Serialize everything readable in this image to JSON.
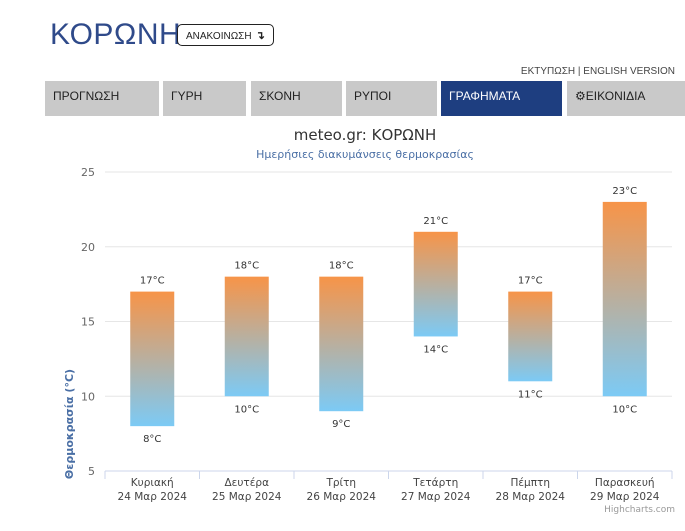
{
  "header": {
    "title": "ΚΟΡΩΝΗ",
    "announce_label": "ΑΝΑΚΟΙΝΩΣΗ",
    "announce_icon": "arrow-down-icon",
    "print_link": "ΕΚΤΥΠΩΣΗ",
    "separator": " | ",
    "english_link": "ENGLISH VERSION"
  },
  "tabs": [
    {
      "label": "ΠΡΟΓΝΩΣΗ",
      "active": false
    },
    {
      "label": "ΓΥΡΗ",
      "active": false
    },
    {
      "label": "ΣΚΟΝΗ",
      "active": false
    },
    {
      "label": "ΡΥΠΟΙ",
      "active": false
    },
    {
      "label": "ΓΡΑΦΗΜΑΤΑ",
      "active": true
    },
    {
      "label": "ΕΙΚΟΝΙΔΙΑ",
      "active": false,
      "icon": "gear-icon"
    }
  ],
  "chart_data": {
    "type": "bar",
    "title": "meteo.gr: ΚΟΡΩΝΗ",
    "subtitle": "Ημερήσιες διακυμάνσεις θερμοκρασίας",
    "ylabel": "Θερμοκρασία (°C)",
    "ylim": [
      5,
      25
    ],
    "yticks": [
      5,
      10,
      15,
      20,
      25
    ],
    "grid": true,
    "categories": [
      {
        "day": "Κυριακή",
        "date": "24 Μαρ 2024"
      },
      {
        "day": "Δευτέρα",
        "date": "25 Μαρ 2024"
      },
      {
        "day": "Τρίτη",
        "date": "26 Μαρ 2024"
      },
      {
        "day": "Τετάρτη",
        "date": "27 Μαρ 2024"
      },
      {
        "day": "Πέμπτη",
        "date": "28 Μαρ 2024"
      },
      {
        "day": "Παρασκευή",
        "date": "29 Μαρ 2024"
      }
    ],
    "series": [
      {
        "low": 8,
        "high": 17
      },
      {
        "low": 10,
        "high": 18
      },
      {
        "low": 9,
        "high": 18
      },
      {
        "low": 14,
        "high": 21
      },
      {
        "low": 11,
        "high": 17
      },
      {
        "low": 10,
        "high": 23
      }
    ],
    "unit": "°C",
    "colors": {
      "top": "#f79448",
      "bottom": "#7ccaf5"
    },
    "credit": "Highcharts.com"
  }
}
